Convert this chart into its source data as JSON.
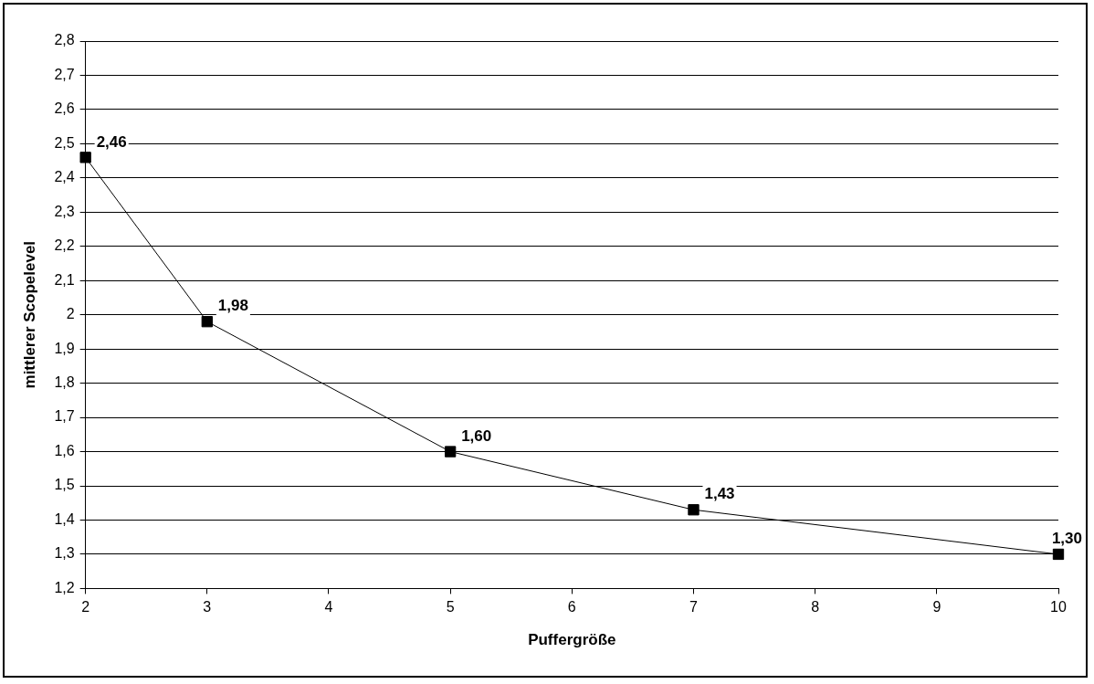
{
  "chart_data": {
    "type": "line",
    "xlabel": "Puffergröße",
    "ylabel": "mittlerer Scopelevel",
    "x": [
      2,
      3,
      5,
      7,
      10
    ],
    "series": [
      {
        "color": "#000000",
        "values": [
          2.46,
          1.98,
          1.6,
          1.43,
          1.3
        ],
        "value_labels": [
          "2,46",
          "1,98",
          "1,60",
          "1,43",
          "1,30"
        ]
      }
    ],
    "xlim": [
      2,
      10
    ],
    "xticks": [
      2,
      3,
      4,
      5,
      6,
      7,
      8,
      9,
      10
    ],
    "ylim": [
      1.2,
      2.8
    ],
    "yticks": [
      {
        "value": 1.2,
        "label": "1,2"
      },
      {
        "value": 1.3,
        "label": "1,3"
      },
      {
        "value": 1.4,
        "label": "1,4"
      },
      {
        "value": 1.5,
        "label": "1,5"
      },
      {
        "value": 1.6,
        "label": "1,6"
      },
      {
        "value": 1.7,
        "label": "1,7"
      },
      {
        "value": 1.8,
        "label": "1,8"
      },
      {
        "value": 1.9,
        "label": "1,9"
      },
      2,
      {
        "value": 2.1,
        "label": "2,1"
      },
      {
        "value": 2.2,
        "label": "2,2"
      },
      {
        "value": 2.3,
        "label": "2,3"
      },
      {
        "value": 2.4,
        "label": "2,4"
      },
      {
        "value": 2.5,
        "label": "2,5"
      },
      {
        "value": 2.6,
        "label": "2,6"
      },
      {
        "value": 2.7,
        "label": "2,7"
      },
      {
        "value": 2.8,
        "label": "2,8"
      }
    ],
    "grid": "y",
    "legend": false,
    "marker": "square",
    "line_style": "solid"
  }
}
